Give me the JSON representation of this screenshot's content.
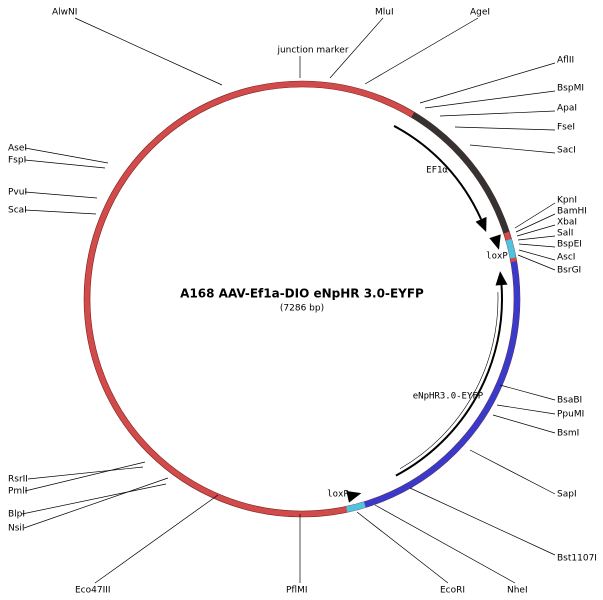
{
  "title": "A168 AAV-Ef1a-DIO eNpHR 3.0-EYFP",
  "subtitle": "(7286 bp)",
  "sites": [
    "AlwNI",
    "MluI",
    "AgeI",
    "AflII",
    "BspMI",
    "ApaI",
    "FseI",
    "SacI",
    "KpnI",
    "BamHI",
    "XbaI",
    "SalI",
    "BspEI",
    "AscI",
    "BsrGI",
    "BsaBI",
    "PpuMI",
    "BsmI",
    "SapI",
    "Bst1107I",
    "NheI",
    "EcoRI",
    "PflMI",
    "Eco47III",
    "NsiI",
    "BlpI",
    "PmlI",
    "RsrII",
    "ScaI",
    "PvuI",
    "FspI",
    "AseI"
  ],
  "marker": "junction marker",
  "features": [
    "EF1α",
    "loxP",
    "eNpHR3.0-EYFP",
    "loxP"
  ]
}
